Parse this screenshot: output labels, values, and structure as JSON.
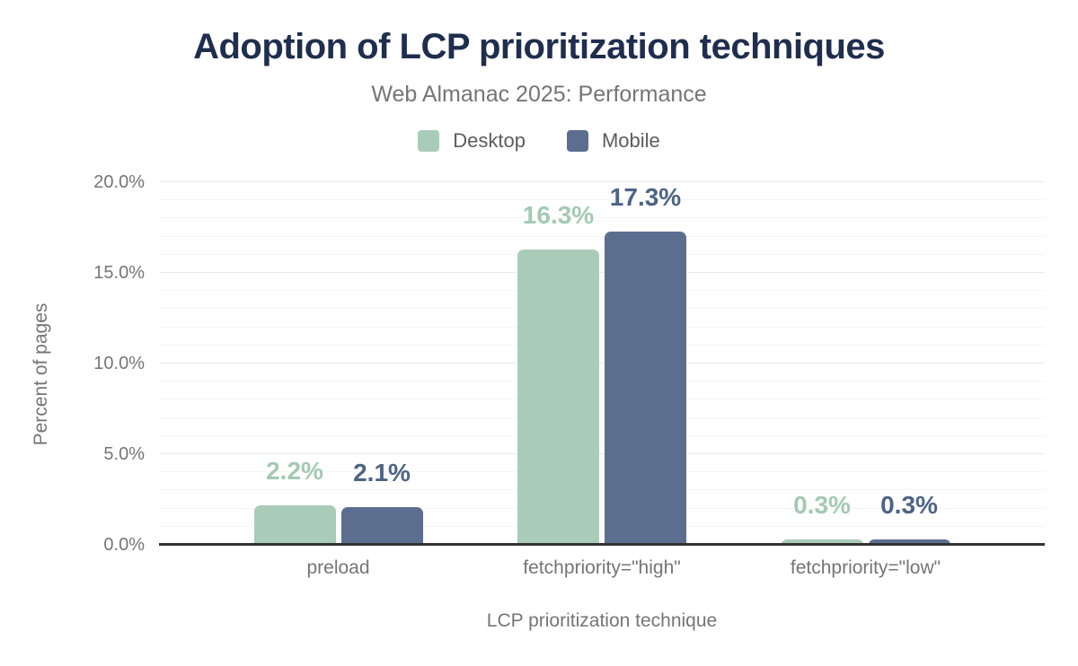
{
  "chart_data": {
    "type": "bar",
    "title": "Adoption of LCP prioritization techniques",
    "subtitle": "Web Almanac 2025: Performance",
    "xlabel": "LCP prioritization technique",
    "ylabel": "Percent of pages",
    "categories": [
      "preload",
      "fetchpriority=\"high\"",
      "fetchpriority=\"low\""
    ],
    "series": [
      {
        "name": "Desktop",
        "values": [
          2.2,
          16.3,
          0.3
        ],
        "value_labels": [
          "2.2%",
          "16.3%",
          "0.3%"
        ],
        "color": "#a9ccb8",
        "label_color": "#a3c9b4"
      },
      {
        "name": "Mobile",
        "values": [
          2.1,
          17.3,
          0.3
        ],
        "value_labels": [
          "2.1%",
          "17.3%",
          "0.3%"
        ],
        "color": "#5c6e90",
        "label_color": "#4d6484"
      }
    ],
    "ylim": [
      0,
      20
    ],
    "yticks": [
      {
        "value": 0,
        "label": "0.0%"
      },
      {
        "value": 5,
        "label": "5.0%"
      },
      {
        "value": 10,
        "label": "10.0%"
      },
      {
        "value": 15,
        "label": "15.0%"
      },
      {
        "value": 20,
        "label": "20.0%"
      }
    ],
    "grid": {
      "orientation": "horizontal",
      "minor_step_percent": 1,
      "major_step_percent": 5
    },
    "legend_position": "top"
  },
  "colors": {
    "title_text": "#1f2e4e",
    "muted_text": "#757575",
    "legend_text": "#5c5c5c",
    "axis_line": "#333333",
    "grid_minor": "#f5f5f5",
    "grid_major": "#eaeaea",
    "desktop_series": "#a9ccb8",
    "mobile_series": "#5c6e90"
  }
}
